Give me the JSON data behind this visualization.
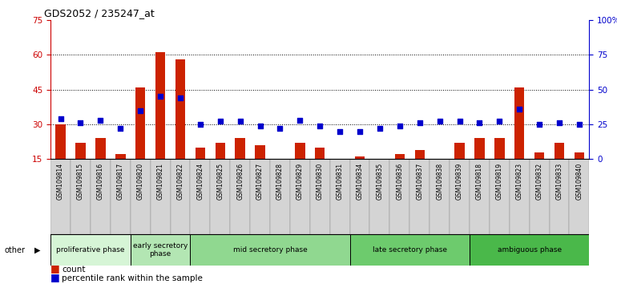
{
  "title": "GDS2052 / 235247_at",
  "samples": [
    "GSM109814",
    "GSM109815",
    "GSM109816",
    "GSM109817",
    "GSM109820",
    "GSM109821",
    "GSM109822",
    "GSM109824",
    "GSM109825",
    "GSM109826",
    "GSM109827",
    "GSM109828",
    "GSM109829",
    "GSM109830",
    "GSM109831",
    "GSM109834",
    "GSM109835",
    "GSM109836",
    "GSM109837",
    "GSM109838",
    "GSM109839",
    "GSM109818",
    "GSM109819",
    "GSM109823",
    "GSM109832",
    "GSM109833",
    "GSM109840"
  ],
  "counts": [
    30,
    22,
    24,
    17,
    46,
    61,
    58,
    20,
    22,
    24,
    21,
    14,
    22,
    20,
    12,
    16,
    14,
    17,
    19,
    15,
    22,
    24,
    24,
    46,
    18,
    22,
    18
  ],
  "percentiles": [
    29,
    26,
    28,
    22,
    35,
    45,
    44,
    25,
    27,
    27,
    24,
    22,
    28,
    24,
    20,
    20,
    22,
    24,
    26,
    27,
    27,
    26,
    27,
    36,
    25,
    26,
    25
  ],
  "phases": [
    {
      "name": "proliferative phase",
      "start": 0,
      "end": 4
    },
    {
      "name": "early secretory\nphase",
      "start": 4,
      "end": 7
    },
    {
      "name": "mid secretory phase",
      "start": 7,
      "end": 15
    },
    {
      "name": "late secretory phase",
      "start": 15,
      "end": 21
    },
    {
      "name": "ambiguous phase",
      "start": 21,
      "end": 27
    }
  ],
  "phase_colors": [
    "#d6f5d6",
    "#b3e6b3",
    "#90d890",
    "#6dcb6d",
    "#4ab84a"
  ],
  "ylim_left": [
    15,
    75
  ],
  "ylim_right": [
    0,
    100
  ],
  "yticks_left": [
    15,
    30,
    45,
    60,
    75
  ],
  "yticks_right": [
    0,
    25,
    50,
    75,
    100
  ],
  "bar_color": "#cc2200",
  "dot_color": "#0000cc",
  "left_axis_color": "#cc0000",
  "right_axis_color": "#0000cc"
}
